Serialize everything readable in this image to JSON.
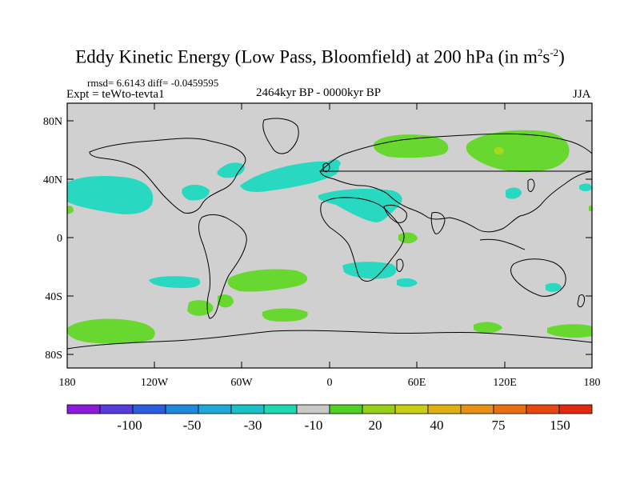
{
  "title": {
    "main": "Eddy Kinetic Energy (Low Pass, Bloomfield) at 200 hPa (in m",
    "exp1": "2",
    "mid": "s",
    "exp2": "-2",
    "end": ")"
  },
  "stats": "rmsd= 6.6143 diff= -0.0459595",
  "experiment": "Expt = teWto-tevta1",
  "period": "2464kyr BP - 0000kyr BP",
  "season": "JJA",
  "lat_labels": [
    "80N",
    "40N",
    "0",
    "40S",
    "80S"
  ],
  "lon_labels": [
    "180",
    "120W",
    "60W",
    "0",
    "60E",
    "120E",
    "180"
  ],
  "colorbar": {
    "labels": [
      "-100",
      "-50",
      "-30",
      "-10",
      "20",
      "40",
      "75",
      "150"
    ],
    "colors": [
      "#8c1bdc",
      "#5a3cdc",
      "#2b5ee0",
      "#1e88e0",
      "#1fa8dc",
      "#18c0c8",
      "#20d8b0",
      "#c8c8c8",
      "#50d020",
      "#98d018",
      "#c8d010",
      "#e0b010",
      "#e89010",
      "#e87010",
      "#e84810",
      "#e02a10"
    ]
  },
  "map_colors": {
    "land_fill": "#d0d0d0",
    "negative_anomaly": "#28d8c0",
    "positive_anomaly": "#68d830",
    "strong_positive": "#a8d820"
  }
}
